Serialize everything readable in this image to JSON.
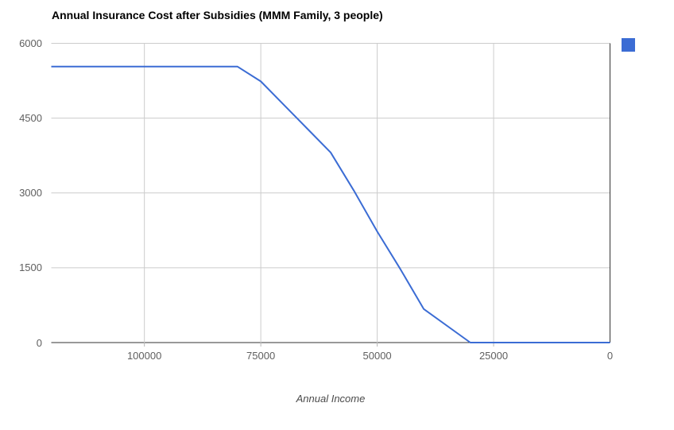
{
  "chart_data": {
    "type": "line",
    "title": "Annual Insurance Cost after Subsidies (MMM Family, 3 people)",
    "xlabel": "Annual Income",
    "ylabel": "",
    "xlim": [
      120000,
      0
    ],
    "ylim": [
      0,
      6000
    ],
    "x_axis_reversed": true,
    "grid": true,
    "x_ticks": [
      100000,
      75000,
      50000,
      25000,
      0
    ],
    "x_tick_labels": [
      "100000",
      "75000",
      "50000",
      "25000",
      "0"
    ],
    "y_ticks": [
      0,
      1500,
      3000,
      4500,
      6000
    ],
    "y_tick_labels": [
      "0",
      "1500",
      "3000",
      "4500",
      "6000"
    ],
    "legend": {
      "position": "top-right",
      "label": "",
      "swatch_color": "#3b6cd4"
    },
    "series": [
      {
        "color": "#3b6cd4",
        "points": [
          [
            120000,
            5533
          ],
          [
            80000,
            5533
          ],
          [
            75000,
            5237
          ],
          [
            70000,
            4762
          ],
          [
            65000,
            4287
          ],
          [
            60000,
            3812
          ],
          [
            55000,
            3045
          ],
          [
            50000,
            2227
          ],
          [
            45000,
            1469
          ],
          [
            40000,
            672
          ],
          [
            30000,
            0
          ],
          [
            25000,
            0
          ],
          [
            20000,
            0
          ],
          [
            10000,
            0
          ],
          [
            0,
            0
          ]
        ]
      }
    ],
    "colors": {
      "line": "#3b6cd4",
      "gridline": "#cccccc",
      "axis": "#333333",
      "tick_mark": "#b7b7b7",
      "tick_label": "#5f5f5f",
      "title": "#000000",
      "axis_title": "#4a4a4a",
      "background": "#ffffff"
    }
  }
}
